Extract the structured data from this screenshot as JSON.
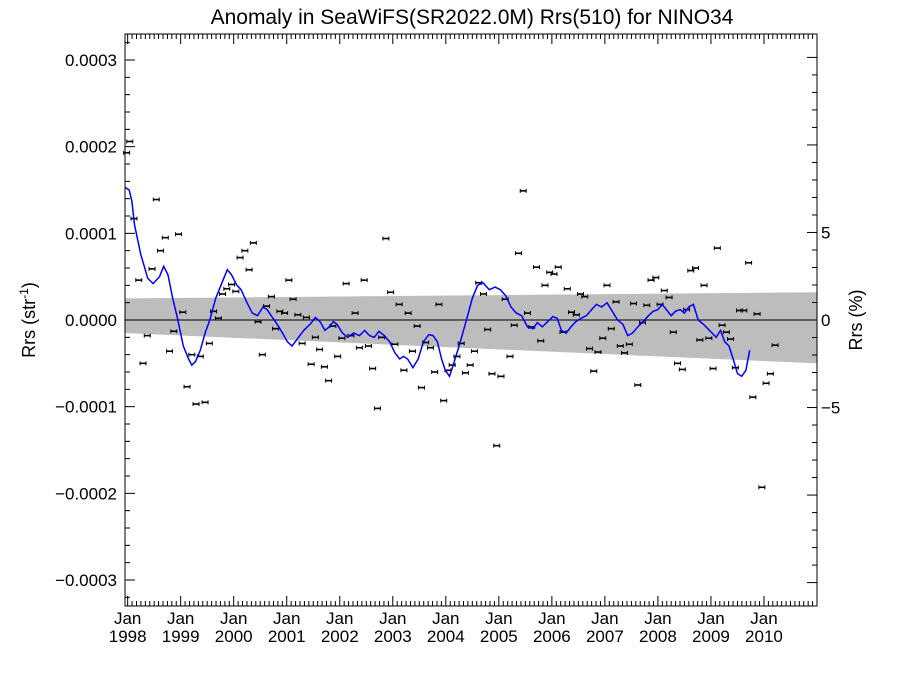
{
  "chart_data": {
    "type": "scatter",
    "title": "Anomaly in SeaWiFS(SR2022.0M) Rrs(510) for NINO34",
    "ylabel_left_main": "Rrs (str",
    "ylabel_left_sup": "-1",
    "ylabel_left_close": ")",
    "ylabel_right": "Rrs (%)",
    "ylim": [
      -0.00033,
      0.00033
    ],
    "xlim": [
      1997.95,
      2011.0
    ],
    "yticks": [
      {
        "value": 0.0003,
        "label": "0.0003"
      },
      {
        "value": 0.0002,
        "label": "0.0002"
      },
      {
        "value": 0.0001,
        "label": "0.0001"
      },
      {
        "value": 0.0,
        "label": "0.0000"
      },
      {
        "value": -0.0001,
        "label": "−0.0001"
      },
      {
        "value": -0.0002,
        "label": "−0.0002"
      },
      {
        "value": -0.0003,
        "label": "−0.0003"
      }
    ],
    "right_ticks": [
      {
        "value": 5,
        "label": "5"
      },
      {
        "value": 0,
        "label": "0"
      },
      {
        "value": -5,
        "label": "−5"
      }
    ],
    "right_scale_per_percent": 2.02e-05,
    "xticks": [
      {
        "value": 1998.0,
        "month": "Jan",
        "year": "1998"
      },
      {
        "value": 1999.0,
        "month": "Jan",
        "year": "1999"
      },
      {
        "value": 2000.0,
        "month": "Jan",
        "year": "2000"
      },
      {
        "value": 2001.0,
        "month": "Jan",
        "year": "2001"
      },
      {
        "value": 2002.0,
        "month": "Jan",
        "year": "2002"
      },
      {
        "value": 2003.0,
        "month": "Jan",
        "year": "2003"
      },
      {
        "value": 2004.0,
        "month": "Jan",
        "year": "2004"
      },
      {
        "value": 2005.0,
        "month": "Jan",
        "year": "2005"
      },
      {
        "value": 2006.0,
        "month": "Jan",
        "year": "2006"
      },
      {
        "value": 2007.0,
        "month": "Jan",
        "year": "2007"
      },
      {
        "value": 2008.0,
        "month": "Jan",
        "year": "2008"
      },
      {
        "value": 2009.0,
        "month": "Jan",
        "year": "2009"
      },
      {
        "value": 2010.0,
        "month": "Jan",
        "year": "2010"
      }
    ],
    "points": [
      [
        1997.98,
        0.000193
      ],
      [
        1998.04,
        0.000206
      ],
      [
        1998.12,
        0.000117
      ],
      [
        1998.21,
        4.6e-05
      ],
      [
        1998.29,
        -5e-05
      ],
      [
        1998.37,
        -1.8e-05
      ],
      [
        1998.46,
        5.9e-05
      ],
      [
        1998.54,
        0.000139
      ],
      [
        1998.62,
        8e-05
      ],
      [
        1998.71,
        9.5e-05
      ],
      [
        1998.79,
        -3.6e-05
      ],
      [
        1998.87,
        -1.3e-05
      ],
      [
        1998.96,
        9.9e-05
      ],
      [
        1999.04,
        9e-06
      ],
      [
        1999.12,
        -7.7e-05
      ],
      [
        1999.21,
        -4e-05
      ],
      [
        1999.29,
        -9.7e-05
      ],
      [
        1999.37,
        -4.2e-05
      ],
      [
        1999.46,
        -9.5e-05
      ],
      [
        1999.54,
        -2.7e-05
      ],
      [
        1999.62,
        1e-05
      ],
      [
        1999.71,
        2e-06
      ],
      [
        1999.79,
        3e-05
      ],
      [
        1999.87,
        3.6e-05
      ],
      [
        1999.96,
        4.1e-05
      ],
      [
        2000.04,
        3.3e-05
      ],
      [
        2000.12,
        7.2e-05
      ],
      [
        2000.21,
        8e-05
      ],
      [
        2000.29,
        5.8e-05
      ],
      [
        2000.37,
        8.9e-05
      ],
      [
        2000.46,
        -2e-06
      ],
      [
        2000.54,
        -4e-05
      ],
      [
        2000.62,
        1.6e-05
      ],
      [
        2000.71,
        2.7e-05
      ],
      [
        2000.79,
        -1e-05
      ],
      [
        2000.87,
        1e-05
      ],
      [
        2000.96,
        8e-06
      ],
      [
        2001.04,
        4.6e-05
      ],
      [
        2001.12,
        2.4e-05
      ],
      [
        2001.21,
        6e-06
      ],
      [
        2001.29,
        -2.7e-05
      ],
      [
        2001.37,
        3e-06
      ],
      [
        2001.46,
        -5.1e-05
      ],
      [
        2001.54,
        -2e-05
      ],
      [
        2001.62,
        -3.4e-05
      ],
      [
        2001.71,
        -5.4e-05
      ],
      [
        2001.79,
        -7e-05
      ],
      [
        2001.87,
        -7e-06
      ],
      [
        2001.96,
        -4.2e-05
      ],
      [
        2002.04,
        -2.1e-05
      ],
      [
        2002.12,
        4.2e-05
      ],
      [
        2002.21,
        -1.8e-05
      ],
      [
        2002.29,
        8e-06
      ],
      [
        2002.37,
        -3.2e-05
      ],
      [
        2002.46,
        4.6e-05
      ],
      [
        2002.54,
        -3e-05
      ],
      [
        2002.62,
        -5.6e-05
      ],
      [
        2002.71,
        -0.000102
      ],
      [
        2002.79,
        -2e-05
      ],
      [
        2002.87,
        9.4e-05
      ],
      [
        2002.96,
        3.2e-05
      ],
      [
        2003.04,
        -2.8e-05
      ],
      [
        2003.12,
        1.8e-05
      ],
      [
        2003.21,
        -5.8e-05
      ],
      [
        2003.29,
        8e-06
      ],
      [
        2003.37,
        -3.6e-05
      ],
      [
        2003.46,
        -7e-06
      ],
      [
        2003.54,
        -7.8e-05
      ],
      [
        2003.62,
        -2.6e-05
      ],
      [
        2003.71,
        -3.2e-05
      ],
      [
        2003.79,
        -6e-05
      ],
      [
        2003.87,
        1.8e-05
      ],
      [
        2003.96,
        -9.3e-05
      ],
      [
        2004.04,
        -5.8e-05
      ],
      [
        2004.12,
        -5.2e-05
      ],
      [
        2004.21,
        -4.2e-05
      ],
      [
        2004.29,
        -2.7e-05
      ],
      [
        2004.37,
        -6.1e-05
      ],
      [
        2004.46,
        -5.2e-05
      ],
      [
        2004.54,
        -3.6e-05
      ],
      [
        2004.62,
        4.3e-05
      ],
      [
        2004.71,
        3e-05
      ],
      [
        2004.79,
        -1.1e-05
      ],
      [
        2004.87,
        -6.2e-05
      ],
      [
        2004.96,
        -0.000145
      ],
      [
        2005.04,
        -6.5e-05
      ],
      [
        2005.12,
        2.4e-05
      ],
      [
        2005.21,
        -4.2e-05
      ],
      [
        2005.29,
        -6e-06
      ],
      [
        2005.37,
        7.7e-05
      ],
      [
        2005.46,
        0.000149
      ],
      [
        2005.54,
        8e-06
      ],
      [
        2005.62,
        -8e-06
      ],
      [
        2005.71,
        6.1e-05
      ],
      [
        2005.79,
        -2.4e-05
      ],
      [
        2005.87,
        4e-05
      ],
      [
        2005.96,
        5.5e-05
      ],
      [
        2006.04,
        5.3e-05
      ],
      [
        2006.12,
        6.1e-05
      ],
      [
        2006.21,
        -1.4e-05
      ],
      [
        2006.29,
        3.6e-05
      ],
      [
        2006.37,
        9e-06
      ],
      [
        2006.46,
        6e-06
      ],
      [
        2006.54,
        3e-05
      ],
      [
        2006.62,
        2.7e-05
      ],
      [
        2006.71,
        -3.3e-05
      ],
      [
        2006.79,
        -5.9e-05
      ],
      [
        2006.87,
        -3.7e-05
      ],
      [
        2006.96,
        -2.1e-05
      ],
      [
        2007.04,
        4e-05
      ],
      [
        2007.12,
        -1e-05
      ],
      [
        2007.21,
        2.1e-05
      ],
      [
        2007.29,
        -3e-05
      ],
      [
        2007.37,
        -3.8e-05
      ],
      [
        2007.46,
        -2.8e-05
      ],
      [
        2007.54,
        1.9e-05
      ],
      [
        2007.62,
        -7.5e-05
      ],
      [
        2007.71,
        -3e-06
      ],
      [
        2007.79,
        1.7e-05
      ],
      [
        2007.87,
        4.6e-05
      ],
      [
        2007.96,
        4.9e-05
      ],
      [
        2008.04,
        1.8e-05
      ],
      [
        2008.12,
        3.4e-05
      ],
      [
        2008.21,
        2.6e-05
      ],
      [
        2008.29,
        -1.4e-05
      ],
      [
        2008.37,
        -5e-05
      ],
      [
        2008.46,
        -5.7e-05
      ],
      [
        2008.54,
        1.2e-05
      ],
      [
        2008.62,
        5.7e-05
      ],
      [
        2008.71,
        6e-05
      ],
      [
        2008.79,
        -2.3e-05
      ],
      [
        2008.87,
        4e-05
      ],
      [
        2008.96,
        -2.1e-05
      ],
      [
        2009.04,
        -5.6e-05
      ],
      [
        2009.12,
        8.3e-05
      ],
      [
        2009.21,
        -6e-06
      ],
      [
        2009.29,
        -1.4e-05
      ],
      [
        2009.37,
        -2.2e-05
      ],
      [
        2009.46,
        -5.5e-05
      ],
      [
        2009.54,
        1.1e-05
      ],
      [
        2009.62,
        1.1e-05
      ],
      [
        2009.71,
        6.6e-05
      ],
      [
        2009.79,
        -8.9e-05
      ],
      [
        2009.87,
        7e-06
      ],
      [
        2009.96,
        -0.000193
      ],
      [
        2010.04,
        -7.3e-05
      ],
      [
        2010.12,
        -6.2e-05
      ],
      [
        2010.21,
        -2.9e-05
      ]
    ],
    "trend_line": [
      [
        1997.95,
        0.000153
      ],
      [
        1998.03,
        0.00015
      ],
      [
        1998.08,
        0.000137
      ],
      [
        1998.13,
        0.00011
      ],
      [
        1998.25,
        7.5e-05
      ],
      [
        1998.38,
        4.8e-05
      ],
      [
        1998.48,
        4.2e-05
      ],
      [
        1998.6,
        5e-05
      ],
      [
        1998.68,
        6.2e-05
      ],
      [
        1998.76,
        5.2e-05
      ],
      [
        1998.85,
        2.5e-05
      ],
      [
        1998.94,
        2e-06
      ],
      [
        1999.05,
        -3e-05
      ],
      [
        1999.15,
        -4.5e-05
      ],
      [
        1999.21,
        -5.2e-05
      ],
      [
        1999.28,
        -4.8e-05
      ],
      [
        1999.37,
        -3.5e-05
      ],
      [
        1999.46,
        -1.5e-05
      ],
      [
        1999.55,
        0.0
      ],
      [
        1999.66,
        2.5e-05
      ],
      [
        1999.78,
        4.3e-05
      ],
      [
        1999.88,
        5.8e-05
      ],
      [
        1999.96,
        5.2e-05
      ],
      [
        2000.06,
        4e-05
      ],
      [
        2000.14,
        3.5e-05
      ],
      [
        2000.25,
        2e-05
      ],
      [
        2000.35,
        8e-06
      ],
      [
        2000.45,
        5e-06
      ],
      [
        2000.55,
        1.5e-05
      ],
      [
        2000.63,
        1.2e-05
      ],
      [
        2000.73,
        3e-06
      ],
      [
        2000.82,
        -5e-06
      ],
      [
        2000.92,
        -1.5e-05
      ],
      [
        2001.01,
        -2.5e-05
      ],
      [
        2001.1,
        -3e-05
      ],
      [
        2001.2,
        -2.2e-05
      ],
      [
        2001.32,
        -1.2e-05
      ],
      [
        2001.44,
        -5e-06
      ],
      [
        2001.54,
        3e-06
      ],
      [
        2001.63,
        -2e-06
      ],
      [
        2001.72,
        -1.2e-05
      ],
      [
        2001.8,
        -8e-06
      ],
      [
        2001.88,
        -2e-06
      ],
      [
        2001.95,
        -5e-06
      ],
      [
        2002.05,
        -1.5e-05
      ],
      [
        2002.15,
        -2e-05
      ],
      [
        2002.26,
        -1.5e-05
      ],
      [
        2002.37,
        -1.8e-05
      ],
      [
        2002.47,
        -1.2e-05
      ],
      [
        2002.56,
        -1.8e-05
      ],
      [
        2002.65,
        -2e-05
      ],
      [
        2002.74,
        -1.3e-05
      ],
      [
        2002.84,
        -1.8e-05
      ],
      [
        2002.94,
        -2.5e-05
      ],
      [
        2003.04,
        -3.8e-05
      ],
      [
        2003.13,
        -4.5e-05
      ],
      [
        2003.2,
        -4.2e-05
      ],
      [
        2003.28,
        -4.5e-05
      ],
      [
        2003.38,
        -5.5e-05
      ],
      [
        2003.48,
        -4.5e-05
      ],
      [
        2003.58,
        -2.5e-05
      ],
      [
        2003.68,
        -1.7e-05
      ],
      [
        2003.76,
        -1.8e-05
      ],
      [
        2003.84,
        -2.5e-05
      ],
      [
        2003.92,
        -4.5e-05
      ],
      [
        2003.99,
        -5.8e-05
      ],
      [
        2004.07,
        -6.5e-05
      ],
      [
        2004.14,
        -5.2e-05
      ],
      [
        2004.25,
        -3e-05
      ],
      [
        2004.38,
        -2e-06
      ],
      [
        2004.5,
        2.5e-05
      ],
      [
        2004.6,
        4e-05
      ],
      [
        2004.7,
        4.3e-05
      ],
      [
        2004.82,
        3.5e-05
      ],
      [
        2004.93,
        3.8e-05
      ],
      [
        2005.03,
        3.5e-05
      ],
      [
        2005.13,
        2.8e-05
      ],
      [
        2005.23,
        1.5e-05
      ],
      [
        2005.33,
        8e-06
      ],
      [
        2005.43,
        5e-06
      ],
      [
        2005.54,
        -8e-06
      ],
      [
        2005.64,
        -1e-05
      ],
      [
        2005.73,
        -3e-06
      ],
      [
        2005.82,
        -8e-06
      ],
      [
        2005.92,
        -2e-06
      ],
      [
        2006.02,
        4e-06
      ],
      [
        2006.1,
        2e-06
      ],
      [
        2006.18,
        -1.2e-05
      ],
      [
        2006.27,
        -1.5e-05
      ],
      [
        2006.36,
        -8e-06
      ],
      [
        2006.45,
        -2e-06
      ],
      [
        2006.55,
        2e-06
      ],
      [
        2006.65,
        5e-06
      ],
      [
        2006.75,
        1.2e-05
      ],
      [
        2006.84,
        1.8e-05
      ],
      [
        2006.94,
        1.5e-05
      ],
      [
        2007.04,
        2e-05
      ],
      [
        2007.14,
        1e-05
      ],
      [
        2007.24,
        0.0
      ],
      [
        2007.34,
        -5e-06
      ],
      [
        2007.43,
        -1.8e-05
      ],
      [
        2007.52,
        -1.5e-05
      ],
      [
        2007.62,
        -8e-06
      ],
      [
        2007.72,
        -2e-06
      ],
      [
        2007.82,
        5e-06
      ],
      [
        2007.91,
        1e-05
      ],
      [
        2008.0,
        1.2e-05
      ],
      [
        2008.08,
        1.8e-05
      ],
      [
        2008.16,
        1.2e-05
      ],
      [
        2008.25,
        5e-06
      ],
      [
        2008.33,
        1e-05
      ],
      [
        2008.42,
        1.2e-05
      ],
      [
        2008.5,
        8e-06
      ],
      [
        2008.58,
        1.5e-05
      ],
      [
        2008.67,
        1.8e-05
      ],
      [
        2008.76,
        0.0
      ],
      [
        2008.86,
        -5e-06
      ],
      [
        2008.94,
        -1e-05
      ],
      [
        2009.02,
        -1.5e-05
      ],
      [
        2009.1,
        -2e-05
      ],
      [
        2009.18,
        -1.2e-05
      ],
      [
        2009.26,
        -2.5e-05
      ],
      [
        2009.34,
        -3e-05
      ],
      [
        2009.42,
        -4.5e-05
      ],
      [
        2009.5,
        -6.2e-05
      ],
      [
        2009.58,
        -6.5e-05
      ],
      [
        2009.66,
        -5.8e-05
      ],
      [
        2009.73,
        -3.5e-05
      ]
    ],
    "confidence_band": {
      "x": [
        1997.95,
        2011.0
      ],
      "upper": [
        2.5e-05,
        3.2e-05
      ],
      "lower": [
        -1.5e-05,
        -5e-05
      ]
    },
    "zero_line": 0.0,
    "grid": false,
    "colors": {
      "trend": "#0000ff",
      "band": "#bdbdbd",
      "points": "#000000",
      "axis": "#000000"
    }
  }
}
